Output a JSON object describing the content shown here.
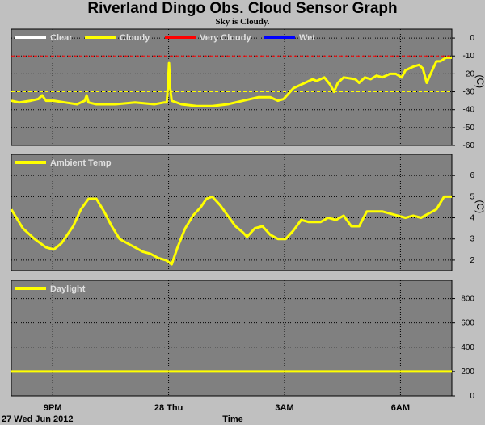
{
  "title": "Riverland Dingo Obs. Cloud Sensor Graph",
  "subtitle": "Sky is Cloudy.",
  "footer": {
    "date": "27 Wed Jun 2012",
    "xlabel": "Time"
  },
  "x_ticks": [
    "9PM",
    "28 Thu",
    "3AM",
    "6AM"
  ],
  "colors": {
    "panel": "#808080",
    "background": "#c0c0c0",
    "clear": "#ffffff",
    "cloudy": "#ffff00",
    "very_cloudy": "#ff0000",
    "wet": "#0000ff"
  },
  "chart_data": [
    {
      "type": "line",
      "name": "sky",
      "legend": [
        "Clear",
        "Cloudy",
        "Very Cloudy",
        "Wet"
      ],
      "unit": "(C)",
      "yticks": [
        0,
        -10,
        -20,
        -30,
        -40,
        -50,
        -60
      ],
      "ylim": [
        -60,
        5
      ],
      "xlim": [
        19.8,
        31.2
      ],
      "thresholds": [
        {
          "value": -10,
          "color": "#ff0000"
        },
        {
          "value": -30,
          "color": "#ffff00"
        }
      ],
      "series": [
        {
          "values": [
            [
              19.8,
              -35
            ],
            [
              20.0,
              -36
            ],
            [
              20.3,
              -35
            ],
            [
              20.5,
              -34
            ],
            [
              20.6,
              -32
            ],
            [
              20.7,
              -35
            ],
            [
              20.9,
              -35
            ],
            [
              21.2,
              -36
            ],
            [
              21.5,
              -37
            ],
            [
              21.7,
              -35
            ],
            [
              21.75,
              -32
            ],
            [
              21.8,
              -36
            ],
            [
              22.0,
              -37
            ],
            [
              22.5,
              -37
            ],
            [
              23.0,
              -36
            ],
            [
              23.5,
              -37
            ],
            [
              23.75,
              -36
            ],
            [
              23.82,
              -36
            ],
            [
              23.85,
              -28
            ],
            [
              23.88,
              -14
            ],
            [
              23.91,
              -28
            ],
            [
              23.95,
              -35
            ],
            [
              24.2,
              -37
            ],
            [
              24.6,
              -38
            ],
            [
              25.0,
              -38
            ],
            [
              25.4,
              -37
            ],
            [
              25.8,
              -35
            ],
            [
              26.2,
              -33
            ],
            [
              26.5,
              -33
            ],
            [
              26.7,
              -35
            ],
            [
              26.85,
              -34
            ],
            [
              27.1,
              -28
            ],
            [
              27.4,
              -25
            ],
            [
              27.6,
              -23
            ],
            [
              27.7,
              -24
            ],
            [
              27.9,
              -22
            ],
            [
              28.05,
              -26
            ],
            [
              28.15,
              -30
            ],
            [
              28.25,
              -25
            ],
            [
              28.4,
              -22
            ],
            [
              28.7,
              -23
            ],
            [
              28.8,
              -25
            ],
            [
              28.95,
              -22
            ],
            [
              29.1,
              -23
            ],
            [
              29.25,
              -21
            ],
            [
              29.4,
              -22
            ],
            [
              29.6,
              -20
            ],
            [
              29.75,
              -20
            ],
            [
              29.9,
              -22
            ],
            [
              30.0,
              -18
            ],
            [
              30.2,
              -16
            ],
            [
              30.35,
              -15
            ],
            [
              30.45,
              -17
            ],
            [
              30.55,
              -25
            ],
            [
              30.65,
              -20
            ],
            [
              30.8,
              -13
            ],
            [
              30.9,
              -13
            ],
            [
              31.05,
              -11
            ],
            [
              31.2,
              -11
            ]
          ]
        }
      ]
    },
    {
      "type": "line",
      "name": "ambient",
      "legend": [
        "Ambient Temp"
      ],
      "unit": "(C)",
      "yticks": [
        6,
        5,
        4,
        3,
        2
      ],
      "ylim": [
        1.5,
        7
      ],
      "xlim": [
        19.8,
        31.2
      ],
      "series": [
        {
          "values": [
            [
              19.8,
              4.4
            ],
            [
              20.1,
              3.5
            ],
            [
              20.4,
              3.0
            ],
            [
              20.7,
              2.6
            ],
            [
              20.9,
              2.5
            ],
            [
              21.1,
              2.8
            ],
            [
              21.4,
              3.6
            ],
            [
              21.6,
              4.4
            ],
            [
              21.8,
              4.9
            ],
            [
              22.0,
              4.9
            ],
            [
              22.2,
              4.3
            ],
            [
              22.4,
              3.6
            ],
            [
              22.6,
              3.0
            ],
            [
              22.8,
              2.8
            ],
            [
              23.0,
              2.6
            ],
            [
              23.2,
              2.4
            ],
            [
              23.4,
              2.3
            ],
            [
              23.6,
              2.1
            ],
            [
              23.8,
              2.0
            ],
            [
              23.95,
              1.8
            ],
            [
              24.1,
              2.6
            ],
            [
              24.3,
              3.5
            ],
            [
              24.5,
              4.1
            ],
            [
              24.7,
              4.5
            ],
            [
              24.85,
              4.9
            ],
            [
              25.0,
              5.0
            ],
            [
              25.2,
              4.6
            ],
            [
              25.4,
              4.1
            ],
            [
              25.6,
              3.6
            ],
            [
              25.8,
              3.3
            ],
            [
              25.9,
              3.1
            ],
            [
              26.1,
              3.5
            ],
            [
              26.3,
              3.6
            ],
            [
              26.5,
              3.2
            ],
            [
              26.7,
              3.0
            ],
            [
              26.9,
              3.0
            ],
            [
              27.1,
              3.4
            ],
            [
              27.3,
              3.9
            ],
            [
              27.5,
              3.8
            ],
            [
              27.8,
              3.8
            ],
            [
              28.0,
              4.0
            ],
            [
              28.2,
              3.9
            ],
            [
              28.4,
              4.1
            ],
            [
              28.6,
              3.6
            ],
            [
              28.8,
              3.6
            ],
            [
              29.0,
              4.3
            ],
            [
              29.2,
              4.3
            ],
            [
              29.4,
              4.3
            ],
            [
              29.6,
              4.2
            ],
            [
              29.8,
              4.1
            ],
            [
              30.0,
              4.0
            ],
            [
              30.2,
              4.1
            ],
            [
              30.4,
              4.0
            ],
            [
              30.6,
              4.2
            ],
            [
              30.8,
              4.4
            ],
            [
              31.0,
              5.0
            ],
            [
              31.2,
              5.0
            ]
          ]
        }
      ]
    },
    {
      "type": "line",
      "name": "daylight",
      "legend": [
        "Daylight"
      ],
      "unit": "",
      "yticks": [
        800,
        600,
        400,
        200,
        0
      ],
      "ylim": [
        0,
        950
      ],
      "xlim": [
        19.8,
        31.2
      ],
      "series": [
        {
          "values": [
            [
              19.8,
              200
            ],
            [
              20.5,
              200
            ],
            [
              21.5,
              200
            ],
            [
              22.5,
              200
            ],
            [
              23.5,
              200
            ],
            [
              24.5,
              200
            ],
            [
              25.5,
              200
            ],
            [
              26.5,
              200
            ],
            [
              27.5,
              200
            ],
            [
              28.5,
              200
            ],
            [
              29.5,
              200
            ],
            [
              30.5,
              200
            ],
            [
              31.0,
              200
            ],
            [
              31.2,
              200
            ]
          ]
        }
      ]
    }
  ]
}
